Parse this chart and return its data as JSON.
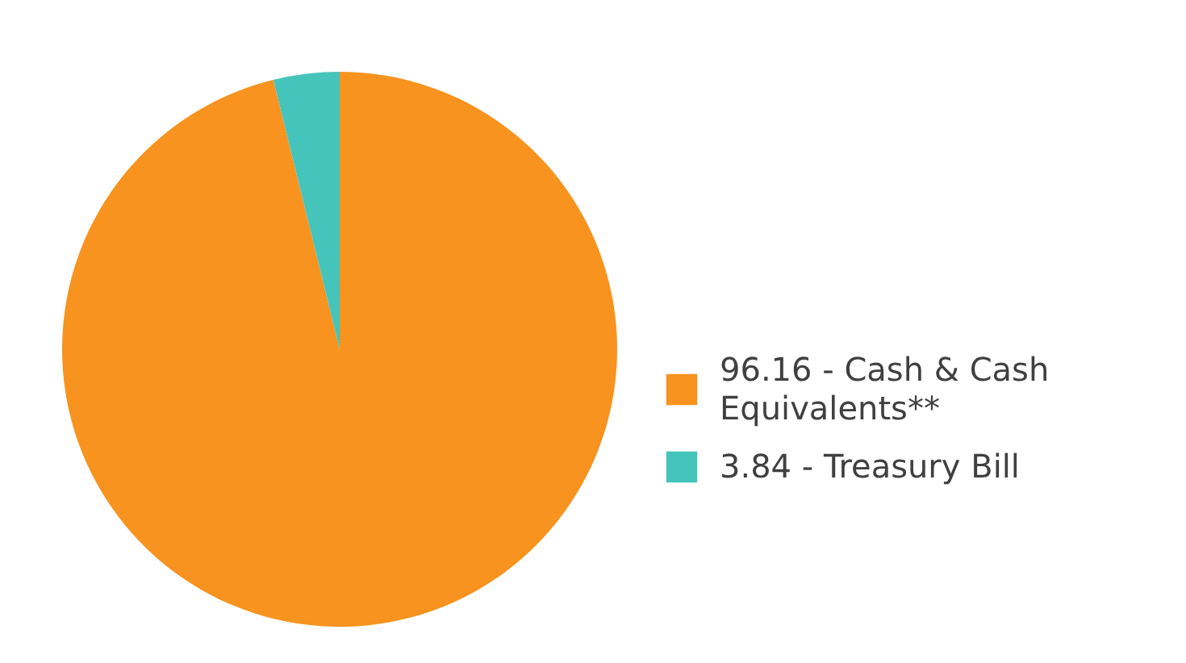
{
  "chart_data": {
    "type": "pie",
    "categories": [
      "96.16 - Cash & Cash Equivalents**",
      "3.84 - Treasury Bill"
    ],
    "values": [
      96.16,
      3.84
    ],
    "colors": [
      "#f7931e",
      "#45c4bb"
    ],
    "legend": "right"
  }
}
